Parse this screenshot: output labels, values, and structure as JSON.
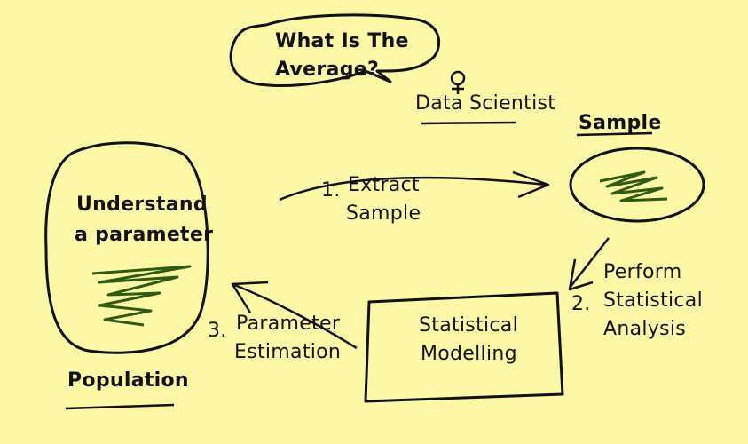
{
  "colors": {
    "background": "#FDF8A6",
    "ink": "#111111",
    "scribble": "#2E5A12"
  },
  "speech_bubble": {
    "line1": "What Is The",
    "line2": "Average?"
  },
  "data_scientist": {
    "label": "Data Scientist"
  },
  "sample": {
    "label": "Sample"
  },
  "population": {
    "line1": "Understand",
    "line2": "a parameter",
    "label": "Population"
  },
  "steps": {
    "extract": {
      "number": "1.",
      "line1": "Extract",
      "line2": "Sample"
    },
    "analysis": {
      "number": "2.",
      "line1": "Perform",
      "line2": "Statistical",
      "line3": "Analysis"
    },
    "estimation": {
      "number": "3.",
      "line1": "Parameter",
      "line2": "Estimation"
    }
  },
  "modelling": {
    "line1": "Statistical",
    "line2": "Modelling"
  }
}
